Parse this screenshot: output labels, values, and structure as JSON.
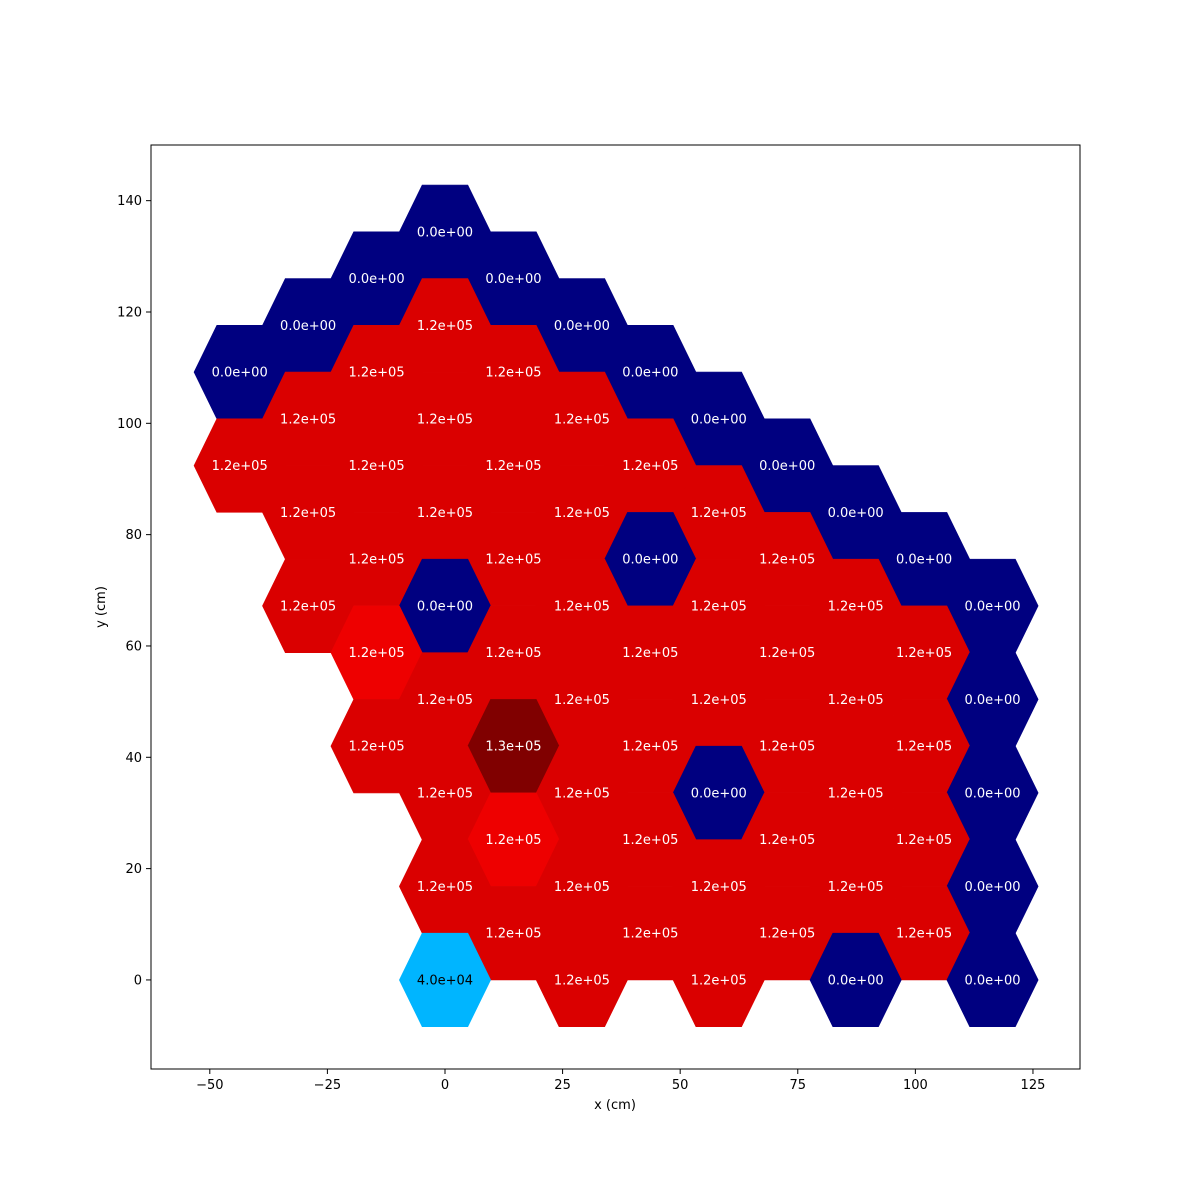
{
  "chart_data": {
    "type": "heatmap",
    "title": "",
    "xlabel": "x (cm)",
    "ylabel": "y (cm)",
    "xlim": [
      -62.5,
      135
    ],
    "ylim": [
      -16,
      150
    ],
    "xticks": [
      -50,
      -25,
      0,
      25,
      50,
      75,
      100,
      125
    ],
    "yticks": [
      0,
      20,
      40,
      60,
      80,
      100,
      120,
      140
    ],
    "xtick_labels": [
      "−50",
      "−25",
      "0",
      "25",
      "50",
      "75",
      "100",
      "125"
    ],
    "ytick_labels": [
      "0",
      "20",
      "40",
      "60",
      "80",
      "100",
      "120",
      "140"
    ],
    "grid": false,
    "colors": {
      "zero": "#000080",
      "low": "#00b5ff",
      "mid": "#da0000",
      "mid_bright": "#ee0000",
      "high": "#800000",
      "label_light": "#ffffff",
      "label_dark": "#000000"
    },
    "cells": [
      {
        "x": 0,
        "y": 134.4,
        "value": 0,
        "label": "0.0e+00"
      },
      {
        "x": -14.55,
        "y": 126,
        "value": 0,
        "label": "0.0e+00"
      },
      {
        "x": 14.55,
        "y": 126,
        "value": 0,
        "label": "0.0e+00"
      },
      {
        "x": -29.1,
        "y": 117.6,
        "value": 0,
        "label": "0.0e+00"
      },
      {
        "x": 0,
        "y": 117.6,
        "value": 120000,
        "label": "1.2e+05"
      },
      {
        "x": 29.1,
        "y": 117.6,
        "value": 0,
        "label": "0.0e+00"
      },
      {
        "x": -43.65,
        "y": 109.2,
        "value": 0,
        "label": "0.0e+00"
      },
      {
        "x": -14.55,
        "y": 109.2,
        "value": 120000,
        "label": "1.2e+05"
      },
      {
        "x": 14.55,
        "y": 109.2,
        "value": 120000,
        "label": "1.2e+05"
      },
      {
        "x": 43.65,
        "y": 109.2,
        "value": 0,
        "label": "0.0e+00"
      },
      {
        "x": -29.1,
        "y": 100.8,
        "value": 120000,
        "label": "1.2e+05"
      },
      {
        "x": 0,
        "y": 100.8,
        "value": 120000,
        "label": "1.2e+05"
      },
      {
        "x": 29.1,
        "y": 100.8,
        "value": 120000,
        "label": "1.2e+05"
      },
      {
        "x": 58.2,
        "y": 100.8,
        "value": 0,
        "label": "0.0e+00"
      },
      {
        "x": -43.65,
        "y": 92.4,
        "value": 120000,
        "label": "1.2e+05"
      },
      {
        "x": -14.55,
        "y": 92.4,
        "value": 120000,
        "label": "1.2e+05"
      },
      {
        "x": 14.55,
        "y": 92.4,
        "value": 120000,
        "label": "1.2e+05"
      },
      {
        "x": 43.65,
        "y": 92.4,
        "value": 120000,
        "label": "1.2e+05"
      },
      {
        "x": 72.75,
        "y": 92.4,
        "value": 0,
        "label": "0.0e+00"
      },
      {
        "x": -29.1,
        "y": 84,
        "value": 120000,
        "label": "1.2e+05"
      },
      {
        "x": 0,
        "y": 84,
        "value": 120000,
        "label": "1.2e+05"
      },
      {
        "x": 29.1,
        "y": 84,
        "value": 120000,
        "label": "1.2e+05"
      },
      {
        "x": 58.2,
        "y": 84,
        "value": 120000,
        "label": "1.2e+05"
      },
      {
        "x": 87.3,
        "y": 84,
        "value": 0,
        "label": "0.0e+00"
      },
      {
        "x": -14.55,
        "y": 75.6,
        "value": 120000,
        "label": "1.2e+05"
      },
      {
        "x": 14.55,
        "y": 75.6,
        "value": 120000,
        "label": "1.2e+05"
      },
      {
        "x": 43.65,
        "y": 75.6,
        "value": 0,
        "label": "0.0e+00"
      },
      {
        "x": 72.75,
        "y": 75.6,
        "value": 120000,
        "label": "1.2e+05"
      },
      {
        "x": 101.85,
        "y": 75.6,
        "value": 0,
        "label": "0.0e+00"
      },
      {
        "x": -29.1,
        "y": 67.2,
        "value": 120000,
        "label": "1.2e+05"
      },
      {
        "x": 0,
        "y": 67.2,
        "value": 0,
        "label": "0.0e+00"
      },
      {
        "x": 29.1,
        "y": 67.2,
        "value": 120000,
        "label": "1.2e+05"
      },
      {
        "x": 58.2,
        "y": 67.2,
        "value": 120000,
        "label": "1.2e+05"
      },
      {
        "x": 87.3,
        "y": 67.2,
        "value": 120000,
        "label": "1.2e+05"
      },
      {
        "x": 116.4,
        "y": 67.2,
        "value": 0,
        "label": "0.0e+00"
      },
      {
        "x": -14.55,
        "y": 58.8,
        "value": 121000,
        "label": "1.2e+05"
      },
      {
        "x": 14.55,
        "y": 58.8,
        "value": 120000,
        "label": "1.2e+05"
      },
      {
        "x": 43.65,
        "y": 58.8,
        "value": 120000,
        "label": "1.2e+05"
      },
      {
        "x": 72.75,
        "y": 58.8,
        "value": 120000,
        "label": "1.2e+05"
      },
      {
        "x": 101.85,
        "y": 58.8,
        "value": 120000,
        "label": "1.2e+05"
      },
      {
        "x": 0,
        "y": 50.4,
        "value": 120000,
        "label": "1.2e+05"
      },
      {
        "x": 29.1,
        "y": 50.4,
        "value": 120000,
        "label": "1.2e+05"
      },
      {
        "x": 58.2,
        "y": 50.4,
        "value": 120000,
        "label": "1.2e+05"
      },
      {
        "x": 87.3,
        "y": 50.4,
        "value": 120000,
        "label": "1.2e+05"
      },
      {
        "x": 116.4,
        "y": 50.4,
        "value": 0,
        "label": "0.0e+00"
      },
      {
        "x": -14.55,
        "y": 42,
        "value": 120000,
        "label": "1.2e+05"
      },
      {
        "x": 14.55,
        "y": 42,
        "value": 130000,
        "label": "1.3e+05"
      },
      {
        "x": 43.65,
        "y": 42,
        "value": 120000,
        "label": "1.2e+05"
      },
      {
        "x": 72.75,
        "y": 42,
        "value": 120000,
        "label": "1.2e+05"
      },
      {
        "x": 101.85,
        "y": 42,
        "value": 120000,
        "label": "1.2e+05"
      },
      {
        "x": 0,
        "y": 33.6,
        "value": 120000,
        "label": "1.2e+05"
      },
      {
        "x": 29.1,
        "y": 33.6,
        "value": 120000,
        "label": "1.2e+05"
      },
      {
        "x": 58.2,
        "y": 33.6,
        "value": 0,
        "label": "0.0e+00"
      },
      {
        "x": 87.3,
        "y": 33.6,
        "value": 120000,
        "label": "1.2e+05"
      },
      {
        "x": 116.4,
        "y": 33.6,
        "value": 0,
        "label": "0.0e+00"
      },
      {
        "x": 14.55,
        "y": 25.2,
        "value": 121000,
        "label": "1.2e+05"
      },
      {
        "x": 43.65,
        "y": 25.2,
        "value": 120000,
        "label": "1.2e+05"
      },
      {
        "x": 72.75,
        "y": 25.2,
        "value": 120000,
        "label": "1.2e+05"
      },
      {
        "x": 101.85,
        "y": 25.2,
        "value": 120000,
        "label": "1.2e+05"
      },
      {
        "x": 0,
        "y": 16.8,
        "value": 120000,
        "label": "1.2e+05"
      },
      {
        "x": 29.1,
        "y": 16.8,
        "value": 120000,
        "label": "1.2e+05"
      },
      {
        "x": 58.2,
        "y": 16.8,
        "value": 120000,
        "label": "1.2e+05"
      },
      {
        "x": 87.3,
        "y": 16.8,
        "value": 120000,
        "label": "1.2e+05"
      },
      {
        "x": 116.4,
        "y": 16.8,
        "value": 0,
        "label": "0.0e+00"
      },
      {
        "x": 14.55,
        "y": 8.4,
        "value": 120000,
        "label": "1.2e+05"
      },
      {
        "x": 43.65,
        "y": 8.4,
        "value": 120000,
        "label": "1.2e+05"
      },
      {
        "x": 72.75,
        "y": 8.4,
        "value": 120000,
        "label": "1.2e+05"
      },
      {
        "x": 101.85,
        "y": 8.4,
        "value": 120000,
        "label": "1.2e+05"
      },
      {
        "x": 0,
        "y": 0,
        "value": 40000,
        "label": "4.0e+04"
      },
      {
        "x": 29.1,
        "y": 0,
        "value": 120000,
        "label": "1.2e+05"
      },
      {
        "x": 58.2,
        "y": 0,
        "value": 120000,
        "label": "1.2e+05"
      },
      {
        "x": 87.3,
        "y": 0,
        "value": 0,
        "label": "0.0e+00"
      },
      {
        "x": 116.4,
        "y": 0,
        "value": 0,
        "label": "0.0e+00"
      }
    ]
  }
}
